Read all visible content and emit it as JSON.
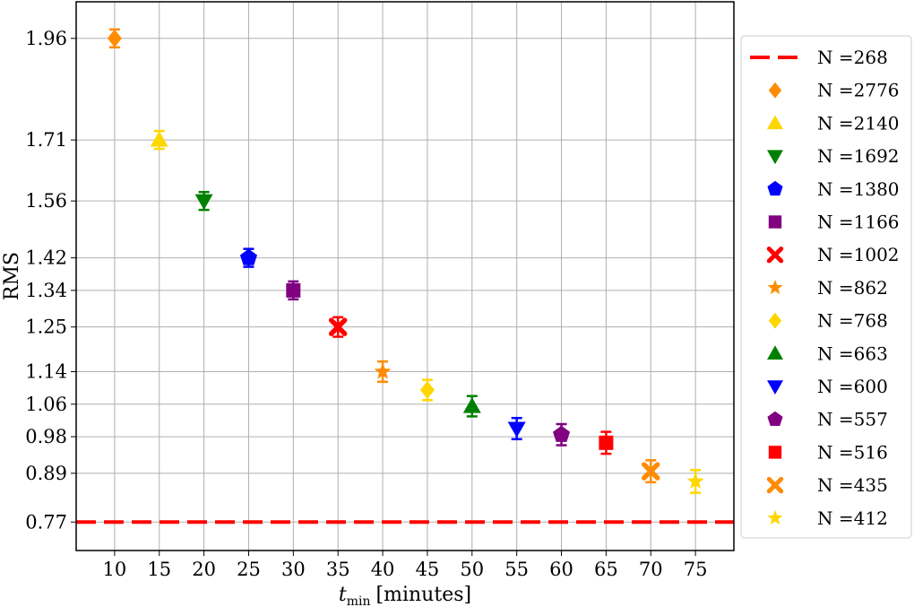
{
  "chart_data": {
    "type": "scatter",
    "xlabel_main": "t",
    "xlabel_sub": "min",
    "xlabel_unit": "[minutes]",
    "ylabel": "RMS",
    "x_ticks": [
      10,
      15,
      20,
      25,
      30,
      35,
      40,
      45,
      50,
      55,
      60,
      65,
      70,
      75
    ],
    "y_ticks": [
      0.77,
      0.89,
      0.98,
      1.06,
      1.14,
      1.25,
      1.34,
      1.42,
      1.56,
      1.71,
      1.96
    ],
    "xlim": [
      5.7,
      79.3
    ],
    "ylim": [
      0.7,
      2.05
    ],
    "grid": true,
    "legend_position": "outside-right",
    "baseline": {
      "name": "N =268",
      "y": 0.77,
      "color": "#ff0000",
      "style": "dashed"
    },
    "series": [
      {
        "name": "N =2776",
        "x": 10,
        "y": 1.96,
        "err": 0.022,
        "marker": "diamond",
        "color": "#ff8c00"
      },
      {
        "name": "N =2140",
        "x": 15,
        "y": 1.71,
        "err": 0.022,
        "marker": "triangle-up",
        "color": "#ffd700"
      },
      {
        "name": "N =1692",
        "x": 20,
        "y": 1.56,
        "err": 0.022,
        "marker": "triangle-down",
        "color": "#008000"
      },
      {
        "name": "N =1380",
        "x": 25,
        "y": 1.42,
        "err": 0.022,
        "marker": "pentagon",
        "color": "#0000ff"
      },
      {
        "name": "N =1166",
        "x": 30,
        "y": 1.34,
        "err": 0.022,
        "marker": "square",
        "color": "#800080"
      },
      {
        "name": "N =1002",
        "x": 35,
        "y": 1.25,
        "err": 0.024,
        "marker": "x",
        "color": "#ff0000"
      },
      {
        "name": "N =862",
        "x": 40,
        "y": 1.14,
        "err": 0.025,
        "marker": "star",
        "color": "#ff8c00"
      },
      {
        "name": "N =768",
        "x": 45,
        "y": 1.095,
        "err": 0.025,
        "marker": "diamond",
        "color": "#ffd700"
      },
      {
        "name": "N =663",
        "x": 50,
        "y": 1.055,
        "err": 0.025,
        "marker": "triangle-up",
        "color": "#008000"
      },
      {
        "name": "N =600",
        "x": 55,
        "y": 1.0,
        "err": 0.026,
        "marker": "triangle-down",
        "color": "#0000ff"
      },
      {
        "name": "N =557",
        "x": 60,
        "y": 0.985,
        "err": 0.026,
        "marker": "pentagon",
        "color": "#800080"
      },
      {
        "name": "N =516",
        "x": 65,
        "y": 0.965,
        "err": 0.027,
        "marker": "square",
        "color": "#ff0000"
      },
      {
        "name": "N =435",
        "x": 70,
        "y": 0.895,
        "err": 0.027,
        "marker": "x",
        "color": "#ff8c00"
      },
      {
        "name": "N =412",
        "x": 75,
        "y": 0.87,
        "err": 0.028,
        "marker": "star",
        "color": "#ffd700"
      }
    ]
  }
}
